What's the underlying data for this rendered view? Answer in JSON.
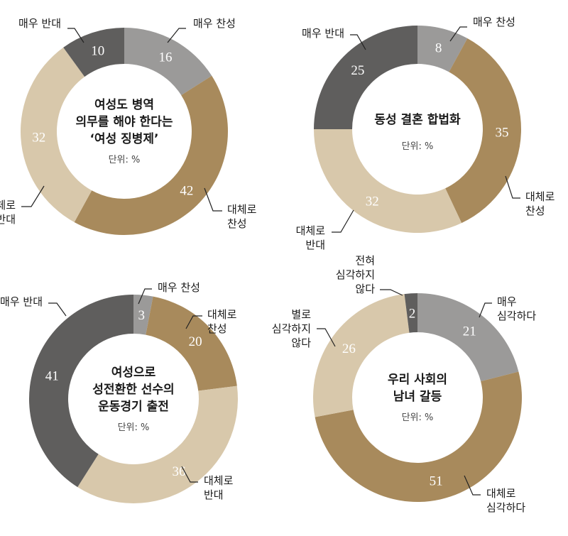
{
  "colors": {
    "매우 찬성": "#9b9a99",
    "대체로 찬성": "#a88a5c",
    "대체로 반대": "#d8c8ab",
    "매우 반대": "#5f5e5d",
    "매우 심각하다": "#9b9a99",
    "대체로 심각하다": "#a88a5c",
    "별로 심각하지 않다": "#d8c8ab",
    "전혀 심각하지 않다": "#5f5e5d"
  },
  "chart_data": [
    {
      "type": "pie",
      "title": "여성도 병역 의무를 해야 한다는 '여성 징병제'",
      "title_lines": [
        "여성도 병역",
        "의무를 해야 한다는",
        "‘여성 징병제’"
      ],
      "unit_label": "단위: %",
      "slices": [
        {
          "category": "매우 찬성",
          "label_lines": [
            "매우 찬성"
          ],
          "value": 16
        },
        {
          "category": "대체로 찬성",
          "label_lines": [
            "대체로",
            "찬성"
          ],
          "value": 42
        },
        {
          "category": "대체로 반대",
          "label_lines": [
            "대체로",
            "반대"
          ],
          "value": 32
        },
        {
          "category": "매우 반대",
          "label_lines": [
            "매우 반대"
          ],
          "value": 10
        }
      ]
    },
    {
      "type": "pie",
      "title": "동성 결혼 합법화",
      "title_lines": [
        "동성 결혼 합법화"
      ],
      "unit_label": "단위: %",
      "slices": [
        {
          "category": "매우 찬성",
          "label_lines": [
            "매우 찬성"
          ],
          "value": 8
        },
        {
          "category": "대체로 찬성",
          "label_lines": [
            "대체로",
            "찬성"
          ],
          "value": 35
        },
        {
          "category": "대체로 반대",
          "label_lines": [
            "대체로",
            "반대"
          ],
          "value": 32
        },
        {
          "category": "매우 반대",
          "label_lines": [
            "매우 반대"
          ],
          "value": 25
        }
      ]
    },
    {
      "type": "pie",
      "title": "여성으로 성전환한 선수의 운동경기 출전",
      "title_lines": [
        "여성으로",
        "성전환한 선수의",
        "운동경기 출전"
      ],
      "unit_label": "단위: %",
      "slices": [
        {
          "category": "매우 찬성",
          "label_lines": [
            "매우 찬성"
          ],
          "value": 3
        },
        {
          "category": "대체로 찬성",
          "label_lines": [
            "대체로",
            "찬성"
          ],
          "value": 20
        },
        {
          "category": "대체로 반대",
          "label_lines": [
            "대체로",
            "반대"
          ],
          "value": 36
        },
        {
          "category": "매우 반대",
          "label_lines": [
            "매우 반대"
          ],
          "value": 41
        }
      ]
    },
    {
      "type": "pie",
      "title": "우리 사회의 남녀 갈등",
      "title_lines": [
        "우리 사회의",
        "남녀 갈등"
      ],
      "unit_label": "단위: %",
      "slices": [
        {
          "category": "매우 심각하다",
          "label_lines": [
            "매우",
            "심각하다"
          ],
          "value": 21
        },
        {
          "category": "대체로 심각하다",
          "label_lines": [
            "대체로",
            "심각하다"
          ],
          "value": 51
        },
        {
          "category": "별로 심각하지 않다",
          "label_lines": [
            "별로",
            "심각하지",
            "않다"
          ],
          "value": 26
        },
        {
          "category": "전혀 심각하지 않다",
          "label_lines": [
            "전혀",
            "심각하지",
            "않다"
          ],
          "value": 2
        }
      ]
    }
  ]
}
